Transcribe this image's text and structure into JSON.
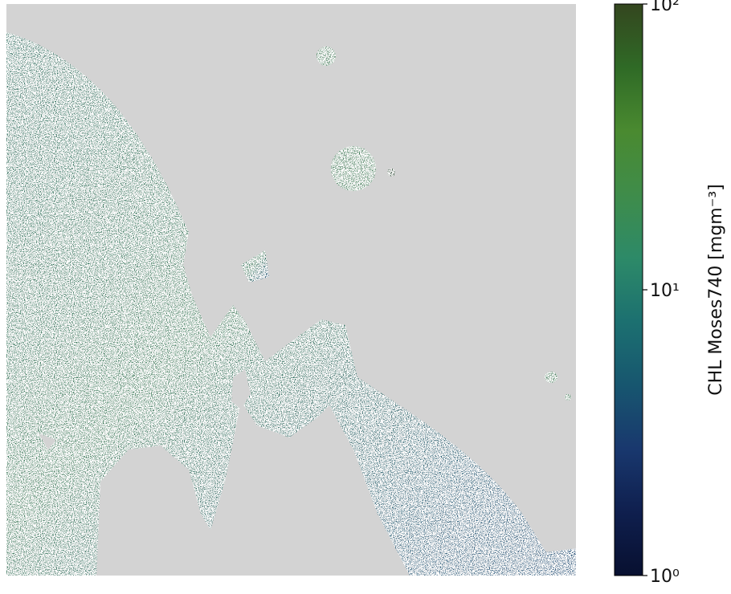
{
  "map": {
    "colorbar": {
      "label": "CHL Moses740 [mgm⁻³]",
      "lim": [
        1,
        100
      ],
      "log": true,
      "ticks": [
        {
          "value": 1,
          "label": "10⁰"
        },
        {
          "value": 10,
          "label": "10¹"
        },
        {
          "value": 100,
          "label": "10²"
        }
      ],
      "colors": [
        "#081030",
        "#0f1f4e",
        "#19386e",
        "#17566f",
        "#1c7070",
        "#2d8a68",
        "#3f8c4a",
        "#4a8a30",
        "#2f6a26",
        "#34461f"
      ]
    }
  }
}
